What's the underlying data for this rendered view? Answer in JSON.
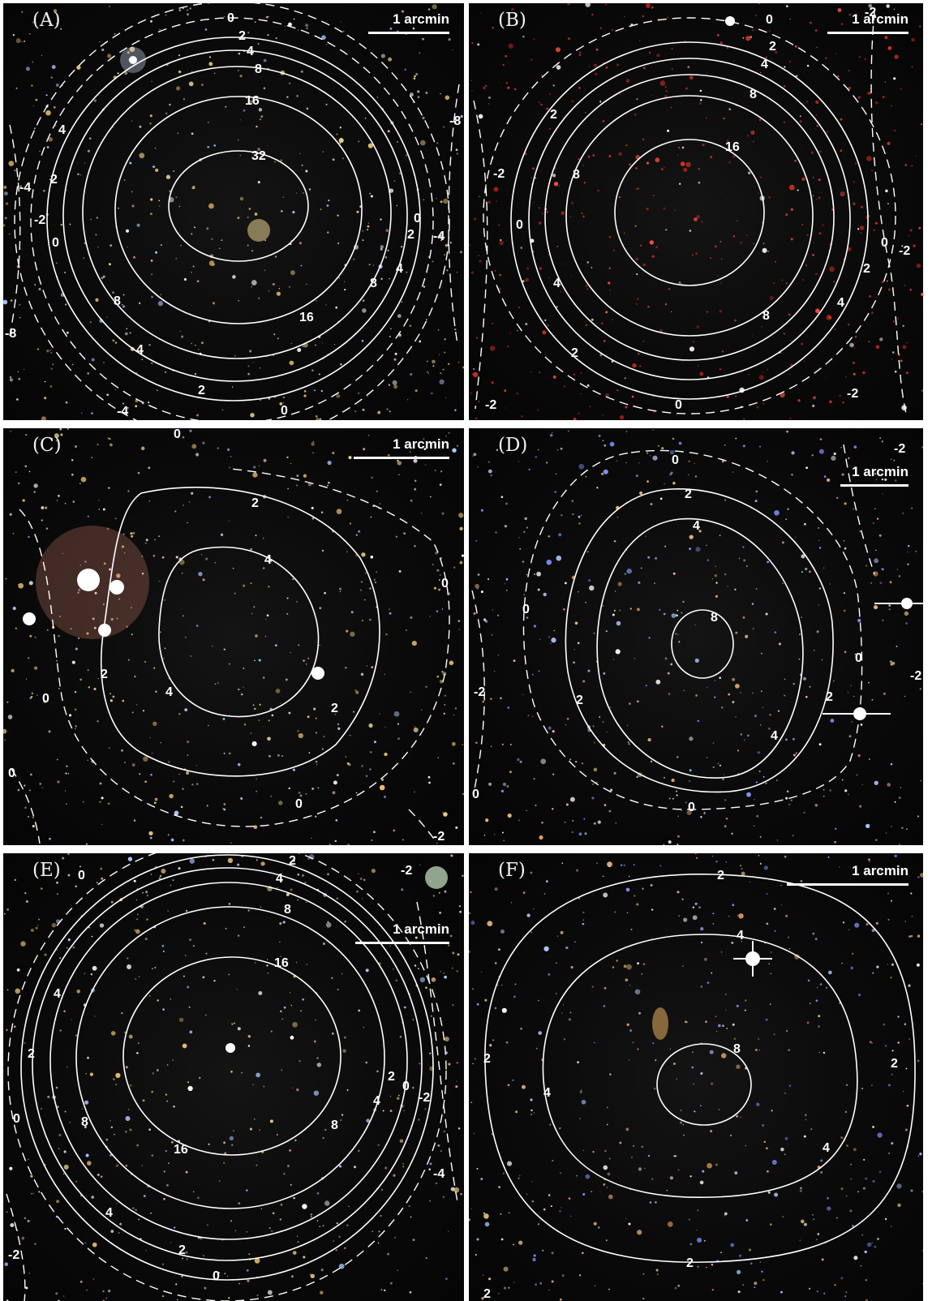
{
  "scale_label": "1 arcmin",
  "panels": [
    {
      "label": "(A)",
      "contour_labels": [
        "0",
        "2",
        "4",
        "8",
        "16",
        "32",
        "-2",
        "-4",
        "-8"
      ]
    },
    {
      "label": "(B)",
      "contour_labels": [
        "0",
        "2",
        "4",
        "8",
        "16",
        "-2"
      ]
    },
    {
      "label": "(C)",
      "contour_labels": [
        "0",
        "2",
        "4",
        "-2"
      ]
    },
    {
      "label": "(D)",
      "contour_labels": [
        "0",
        "2",
        "4",
        "8",
        "-2"
      ]
    },
    {
      "label": "(E)",
      "contour_labels": [
        "0",
        "2",
        "4",
        "8",
        "16",
        "-2",
        "-4"
      ]
    },
    {
      "label": "(F)",
      "contour_labels": [
        "2",
        "4",
        "8"
      ]
    }
  ],
  "colors": {
    "background": "#0a0a0a",
    "contour": "#ffffff",
    "star_warm": "#e8c070",
    "star_red": "#d83020",
    "star_blue": "#a8c8ff"
  }
}
